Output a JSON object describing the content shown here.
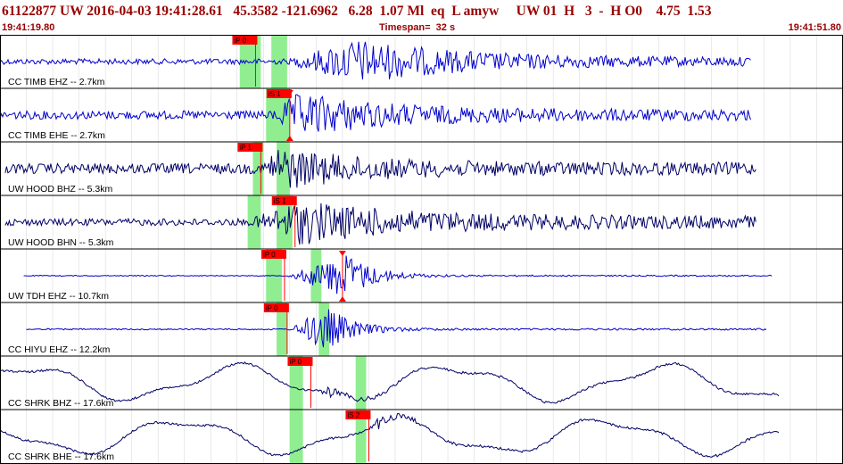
{
  "header": {
    "title": "61122877 UW 2016-04-03 19:41:28.61   45.3582 -121.6962   6.28  1.07 Ml  eq  L amyw     UW 01  H   3  -  H O0    4.75  1.53",
    "start_time": "19:41:19.80",
    "timespan": "Timespan=  32 s",
    "end_time": "19:41:51.80"
  },
  "colors": {
    "header_text": "#990000",
    "trace_blue": "#0000cc",
    "trace_dark": "#000066",
    "pick_red": "#ff0000",
    "window_green": "#90ee90"
  },
  "traces": [
    {
      "label": "CC TIMB EHZ -- 2.7km",
      "color": "blue",
      "waveform": "local",
      "onset_s": 11.0,
      "peak_s": 13.5,
      "decay_s": 12,
      "amp_pre": 0.12,
      "amp_peak": 1.0,
      "amp_coda": 0.18,
      "trace_start_s": 0,
      "trace_end_s": 28.5,
      "picks": [
        {
          "label": "iP 0",
          "time_s": 9.7
        }
      ],
      "windows": [
        [
          9.1,
          9.9
        ],
        [
          10.3,
          10.9
        ]
      ]
    },
    {
      "label": "CC TIMB EHE -- 2.7km",
      "color": "blue",
      "waveform": "local",
      "onset_s": 10.3,
      "peak_s": 11.4,
      "decay_s": 10,
      "amp_pre": 0.18,
      "amp_peak": 1.0,
      "amp_coda": 0.25,
      "trace_start_s": 0,
      "trace_end_s": 28.5,
      "picks": [
        {
          "label": "iS 1",
          "time_s": 11.0,
          "marker": true
        }
      ],
      "windows": [
        [
          10.1,
          10.7
        ],
        [
          10.7,
          11.0
        ]
      ]
    },
    {
      "label": "UW HOOD BHZ -- 5.3km",
      "color": "dark",
      "waveform": "local",
      "onset_s": 10.0,
      "peak_s": 10.5,
      "decay_s": 9,
      "amp_pre": 0.22,
      "amp_peak": 1.0,
      "amp_coda": 0.28,
      "trace_start_s": 0.2,
      "trace_end_s": 28.7,
      "picks": [
        {
          "label": "iP 1",
          "time_s": 9.9
        }
      ],
      "windows": [
        [
          9.6,
          10.0
        ],
        [
          10.5,
          11.0
        ]
      ]
    },
    {
      "label": "UW HOOD BHN -- 5.3km",
      "color": "dark",
      "waveform": "local",
      "onset_s": 9.5,
      "peak_s": 11.4,
      "decay_s": 11,
      "amp_pre": 0.15,
      "amp_peak": 1.0,
      "amp_coda": 0.28,
      "trace_start_s": 0.2,
      "trace_end_s": 28.7,
      "picks": [
        {
          "label": "iS 1",
          "time_s": 11.2
        }
      ],
      "windows": [
        [
          9.4,
          9.9
        ],
        [
          10.5,
          11.1
        ]
      ]
    },
    {
      "label": "UW TDH EHZ -- 10.7km",
      "color": "blue",
      "waveform": "local",
      "onset_s": 10.9,
      "peak_s": 13.2,
      "decay_s": 3,
      "amp_pre": 0.02,
      "amp_peak": 1.0,
      "amp_coda": 0.03,
      "trace_start_s": 0.9,
      "trace_end_s": 29.3,
      "picks": [
        {
          "label": "iP 0",
          "time_s": 10.8
        },
        {
          "label": "",
          "time_s": 13.0,
          "marker": true
        }
      ],
      "windows": [
        [
          10.1,
          10.7
        ],
        [
          11.8,
          12.2
        ]
      ]
    },
    {
      "label": "CC HIYU EHZ -- 12.2km",
      "color": "blue",
      "waveform": "local",
      "onset_s": 11.0,
      "peak_s": 12.4,
      "decay_s": 3,
      "amp_pre": 0.03,
      "amp_peak": 1.0,
      "amp_coda": 0.04,
      "trace_start_s": 1.0,
      "trace_end_s": 29.1,
      "picks": [
        {
          "label": "iP 0",
          "time_s": 10.9
        }
      ],
      "windows": [
        [
          10.5,
          10.9
        ],
        [
          12.1,
          12.5
        ]
      ]
    },
    {
      "label": "CC SHRK BHZ -- 17.6km",
      "color": "dark",
      "waveform": "microseism",
      "onset_s": 12.0,
      "peak_s": 12.4,
      "decay_s": 3,
      "amp_pre": 0.0,
      "amp_peak": 0.25,
      "amp_coda": 0.02,
      "trace_start_s": 0,
      "trace_end_s": 29.6,
      "picks": [
        {
          "label": "iP 0",
          "time_s": 11.8
        }
      ],
      "windows": [
        [
          11.0,
          11.5
        ],
        [
          13.5,
          13.9
        ]
      ]
    },
    {
      "label": "CC SHRK BHE -- 17.6km",
      "color": "dark",
      "waveform": "microseism",
      "onset_s": 13.9,
      "peak_s": 14.3,
      "decay_s": 3,
      "amp_pre": 0.0,
      "amp_peak": 0.25,
      "amp_coda": 0.02,
      "trace_start_s": 0,
      "trace_end_s": 29.6,
      "picks": [
        {
          "label": "iS 2",
          "time_s": 14.0
        }
      ],
      "windows": [
        [
          11.0,
          11.5
        ],
        [
          13.5,
          13.9
        ]
      ]
    }
  ]
}
